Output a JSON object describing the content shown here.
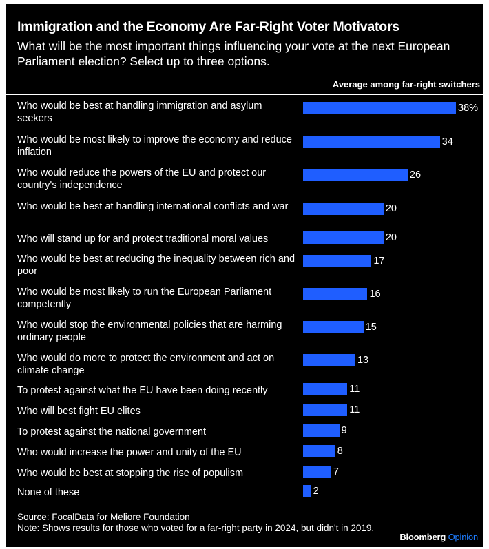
{
  "header": {
    "title": "Immigration and the Economy Are Far-Right Voter Motivators",
    "subtitle": "What will be the most important things influencing your vote at the next European Parliament election? Select up to three options."
  },
  "chart_data": {
    "type": "bar",
    "orientation": "horizontal",
    "series": [
      {
        "name": "Average among far-right switchers",
        "color": "#1f5eff"
      }
    ],
    "categories": [
      "Who would be best at handling immigration and asylum seekers",
      "Who would be most likely to improve the economy and reduce inflation",
      "Who would reduce the powers of the EU and protect our country's independence",
      "Who would be best at handling international conflicts and war",
      "Who will stand up for and protect traditional moral values",
      "Who would be best at reducing the inequality between rich and poor",
      "Who would be most likely to run the European Parliament competently",
      "Who would stop the environmental policies that are harming ordinary people",
      "Who would do more to protect the environment and act on climate change",
      "To protest against what the EU have been doing recently",
      "Who will best fight EU elites",
      "To protest against the national government",
      "Who would increase the power and unity of the EU",
      "Who would be best at stopping the rise of populism",
      "None of these"
    ],
    "values": [
      38,
      34,
      26,
      20,
      20,
      17,
      16,
      15,
      13,
      11,
      11,
      9,
      8,
      7,
      2
    ],
    "value_labels": [
      "38%",
      "34",
      "26",
      "20",
      "20",
      "17",
      "16",
      "15",
      "13",
      "11",
      "11",
      "9",
      "8",
      "7",
      "2"
    ],
    "unit": "%",
    "xlim": [
      0,
      38
    ],
    "grid": false,
    "legend": "none"
  },
  "footer": {
    "source": "Source: FocalData for Meliore Foundation",
    "note": "Note: Shows results for those who voted for a far-right party in 2024, but didn't in 2019.",
    "brand": "Bloomberg",
    "brand_suffix": "Opinion"
  }
}
